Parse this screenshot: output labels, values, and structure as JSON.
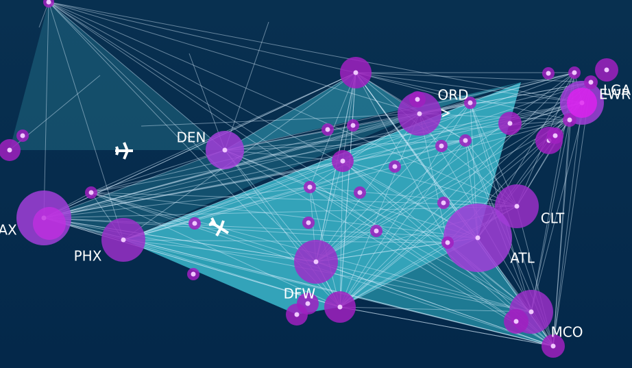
{
  "labels": {
    "lga": "LGA",
    "ewr": "EWR",
    "ord": "ORD",
    "den": "DEN",
    "clt": "CLT",
    "atl": "ATL",
    "phx": "PHX",
    "dfw": "DFW",
    "mco": "MCO",
    "lax": "AX"
  }
}
